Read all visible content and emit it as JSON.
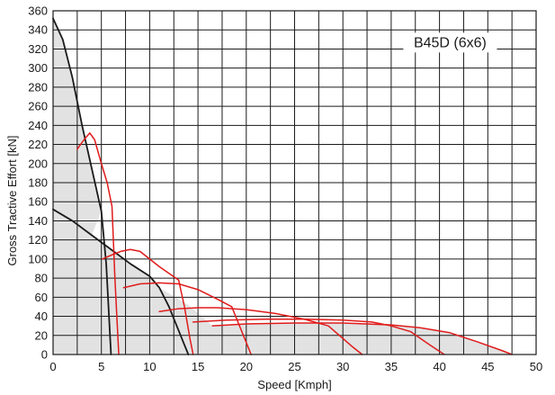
{
  "chart_data": {
    "type": "line",
    "title": "B45D (6x6)",
    "xlabel": "Speed [Kmph]",
    "ylabel": "Gross Tractive Effort [kN]",
    "xlim": [
      0,
      50
    ],
    "ylim": [
      0,
      360
    ],
    "x_ticks": [
      "0",
      "5",
      "10",
      "15",
      "20",
      "25",
      "30",
      "35",
      "40",
      "45",
      "50"
    ],
    "y_ticks": [
      "0",
      "20",
      "40",
      "60",
      "80",
      "100",
      "120",
      "140",
      "160",
      "180",
      "200",
      "220",
      "240",
      "260",
      "280",
      "300",
      "320",
      "340",
      "360"
    ],
    "grid": true,
    "colors": {
      "envelope_fill": "#e2e2e2",
      "black_curves": "#1a1a1a",
      "red_curves": "#e01b1b",
      "grid": "#1a1a1a"
    },
    "series": [
      {
        "color": "black",
        "points": [
          [
            0,
            352
          ],
          [
            1,
            330
          ],
          [
            2,
            290
          ],
          [
            3,
            240
          ],
          [
            4,
            195
          ],
          [
            5,
            150
          ],
          [
            5.5,
            95
          ],
          [
            6,
            0
          ]
        ]
      },
      {
        "color": "black",
        "points": [
          [
            0,
            152
          ],
          [
            2,
            140
          ],
          [
            4,
            125
          ],
          [
            6,
            110
          ],
          [
            8,
            95
          ],
          [
            10,
            82
          ],
          [
            11,
            70
          ],
          [
            12,
            50
          ],
          [
            13,
            25
          ],
          [
            14,
            0
          ]
        ]
      },
      {
        "color": "red",
        "points": [
          [
            2.5,
            215
          ],
          [
            3.2,
            225
          ],
          [
            3.8,
            232
          ],
          [
            4.3,
            225
          ],
          [
            5,
            200
          ],
          [
            5.6,
            180
          ],
          [
            6.1,
            155
          ],
          [
            6.4,
            80
          ],
          [
            6.8,
            0
          ]
        ]
      },
      {
        "color": "red",
        "points": [
          [
            5.1,
            100
          ],
          [
            6,
            104
          ],
          [
            7,
            108
          ],
          [
            8,
            110
          ],
          [
            9,
            108
          ],
          [
            11,
            92
          ],
          [
            13,
            78
          ],
          [
            13.6,
            50
          ],
          [
            14.2,
            15
          ],
          [
            14.5,
            0
          ]
        ]
      },
      {
        "color": "red",
        "points": [
          [
            7.3,
            70
          ],
          [
            9,
            74
          ],
          [
            11,
            75
          ],
          [
            13,
            74
          ],
          [
            15,
            68
          ],
          [
            17,
            58
          ],
          [
            18.5,
            50
          ],
          [
            19.5,
            25
          ],
          [
            20.5,
            0
          ]
        ]
      },
      {
        "color": "red",
        "points": [
          [
            11,
            45
          ],
          [
            13,
            48
          ],
          [
            15,
            49
          ],
          [
            17,
            49
          ],
          [
            20,
            47
          ],
          [
            23,
            43
          ],
          [
            26,
            37
          ],
          [
            28.5,
            30
          ],
          [
            31,
            8
          ],
          [
            32,
            0
          ]
        ]
      },
      {
        "color": "red",
        "points": [
          [
            14.5,
            34
          ],
          [
            18,
            36
          ],
          [
            22,
            37
          ],
          [
            26,
            37
          ],
          [
            30,
            36
          ],
          [
            33,
            34
          ],
          [
            35,
            30
          ],
          [
            37,
            24
          ],
          [
            39,
            10
          ],
          [
            40.5,
            0
          ]
        ]
      },
      {
        "color": "red",
        "points": [
          [
            16.5,
            30
          ],
          [
            20,
            32
          ],
          [
            25,
            33
          ],
          [
            30,
            33
          ],
          [
            35,
            31
          ],
          [
            38,
            28
          ],
          [
            41,
            23
          ],
          [
            44,
            13
          ],
          [
            46.5,
            4
          ],
          [
            47.5,
            0
          ]
        ]
      }
    ]
  }
}
